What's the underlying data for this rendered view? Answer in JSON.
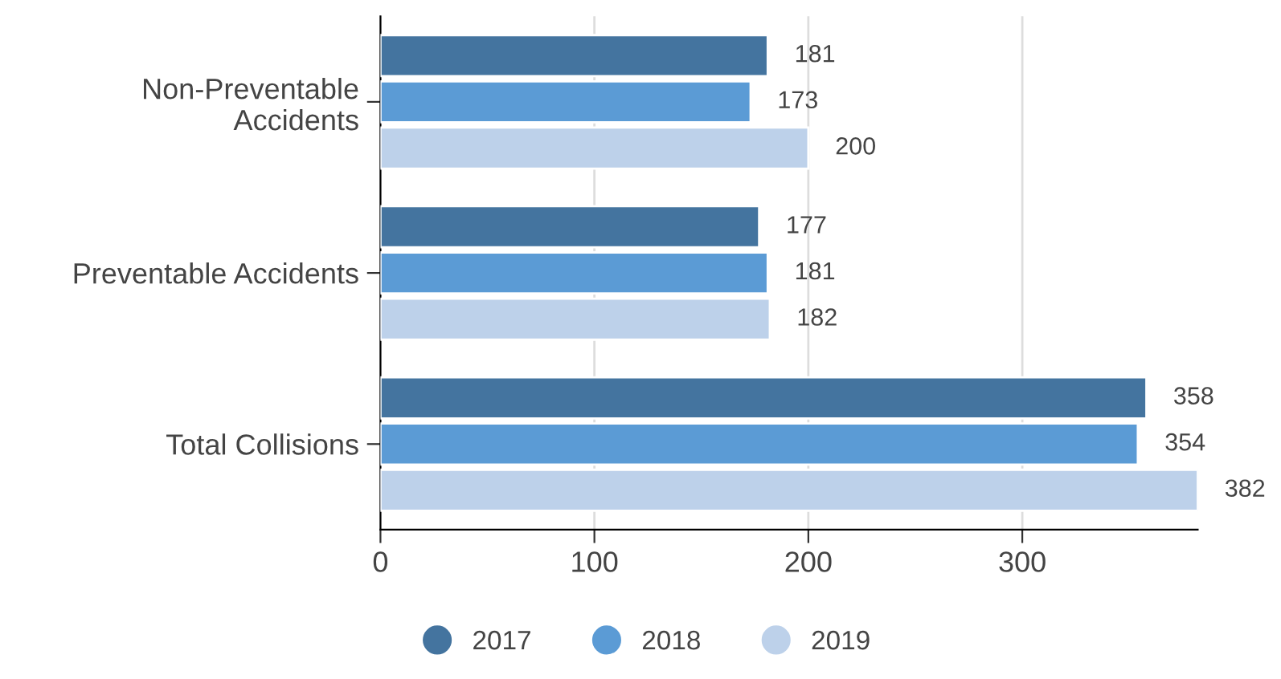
{
  "chart_data": {
    "type": "bar",
    "orientation": "horizontal",
    "categories": [
      "Non-Preventable Accidents",
      "Preventable Accidents",
      "Total Collisions"
    ],
    "series": [
      {
        "name": "2017",
        "color": "#44749f",
        "values": [
          181,
          177,
          358
        ]
      },
      {
        "name": "2018",
        "color": "#5b9bd5",
        "values": [
          173,
          181,
          354
        ]
      },
      {
        "name": "2019",
        "color": "#bdd1ea",
        "values": [
          200,
          182,
          382
        ]
      }
    ],
    "xlim": [
      0,
      382
    ],
    "xticks": [
      0,
      100,
      200,
      300
    ],
    "grid": "x",
    "legend": "bottom",
    "marker": "circle",
    "data_labels": true
  }
}
